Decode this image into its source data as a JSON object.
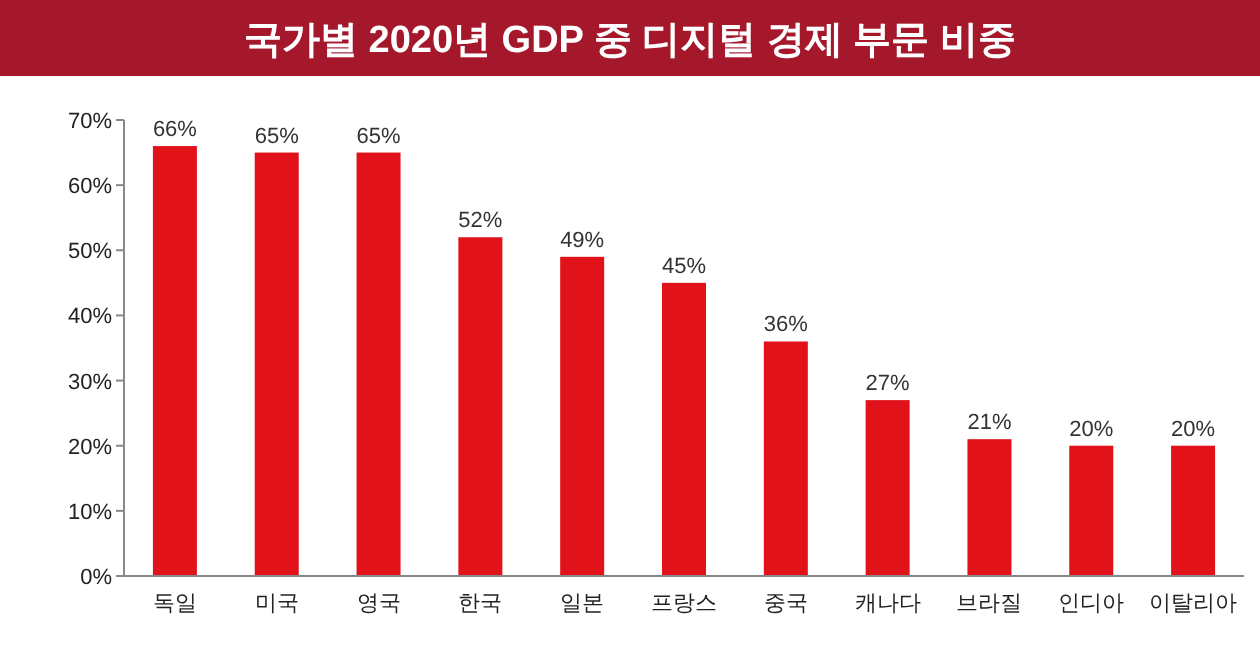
{
  "chart_data": {
    "type": "bar",
    "title": "국가별 2020년 GDP 중 디지털 경제 부문 비중",
    "categories": [
      "독일",
      "미국",
      "영국",
      "한국",
      "일본",
      "프랑스",
      "중국",
      "캐나다",
      "브라질",
      "인디아",
      "이탈리아"
    ],
    "values": [
      66,
      65,
      65,
      52,
      49,
      45,
      36,
      27,
      21,
      20,
      20
    ],
    "value_labels": [
      "66%",
      "65%",
      "65%",
      "52%",
      "49%",
      "45%",
      "36%",
      "27%",
      "21%",
      "20%",
      "20%"
    ],
    "color": "#e2121b",
    "ylim": [
      0,
      70
    ],
    "yticks": [
      {
        "value": 0,
        "label": "0%"
      },
      {
        "value": 10,
        "label": "10%"
      },
      {
        "value": 20,
        "label": "20%"
      },
      {
        "value": 30,
        "label": "30%"
      },
      {
        "value": 40,
        "label": "40%"
      },
      {
        "value": 50,
        "label": "50%"
      },
      {
        "value": 60,
        "label": "60%"
      },
      {
        "value": 70,
        "label": "70%"
      }
    ]
  }
}
